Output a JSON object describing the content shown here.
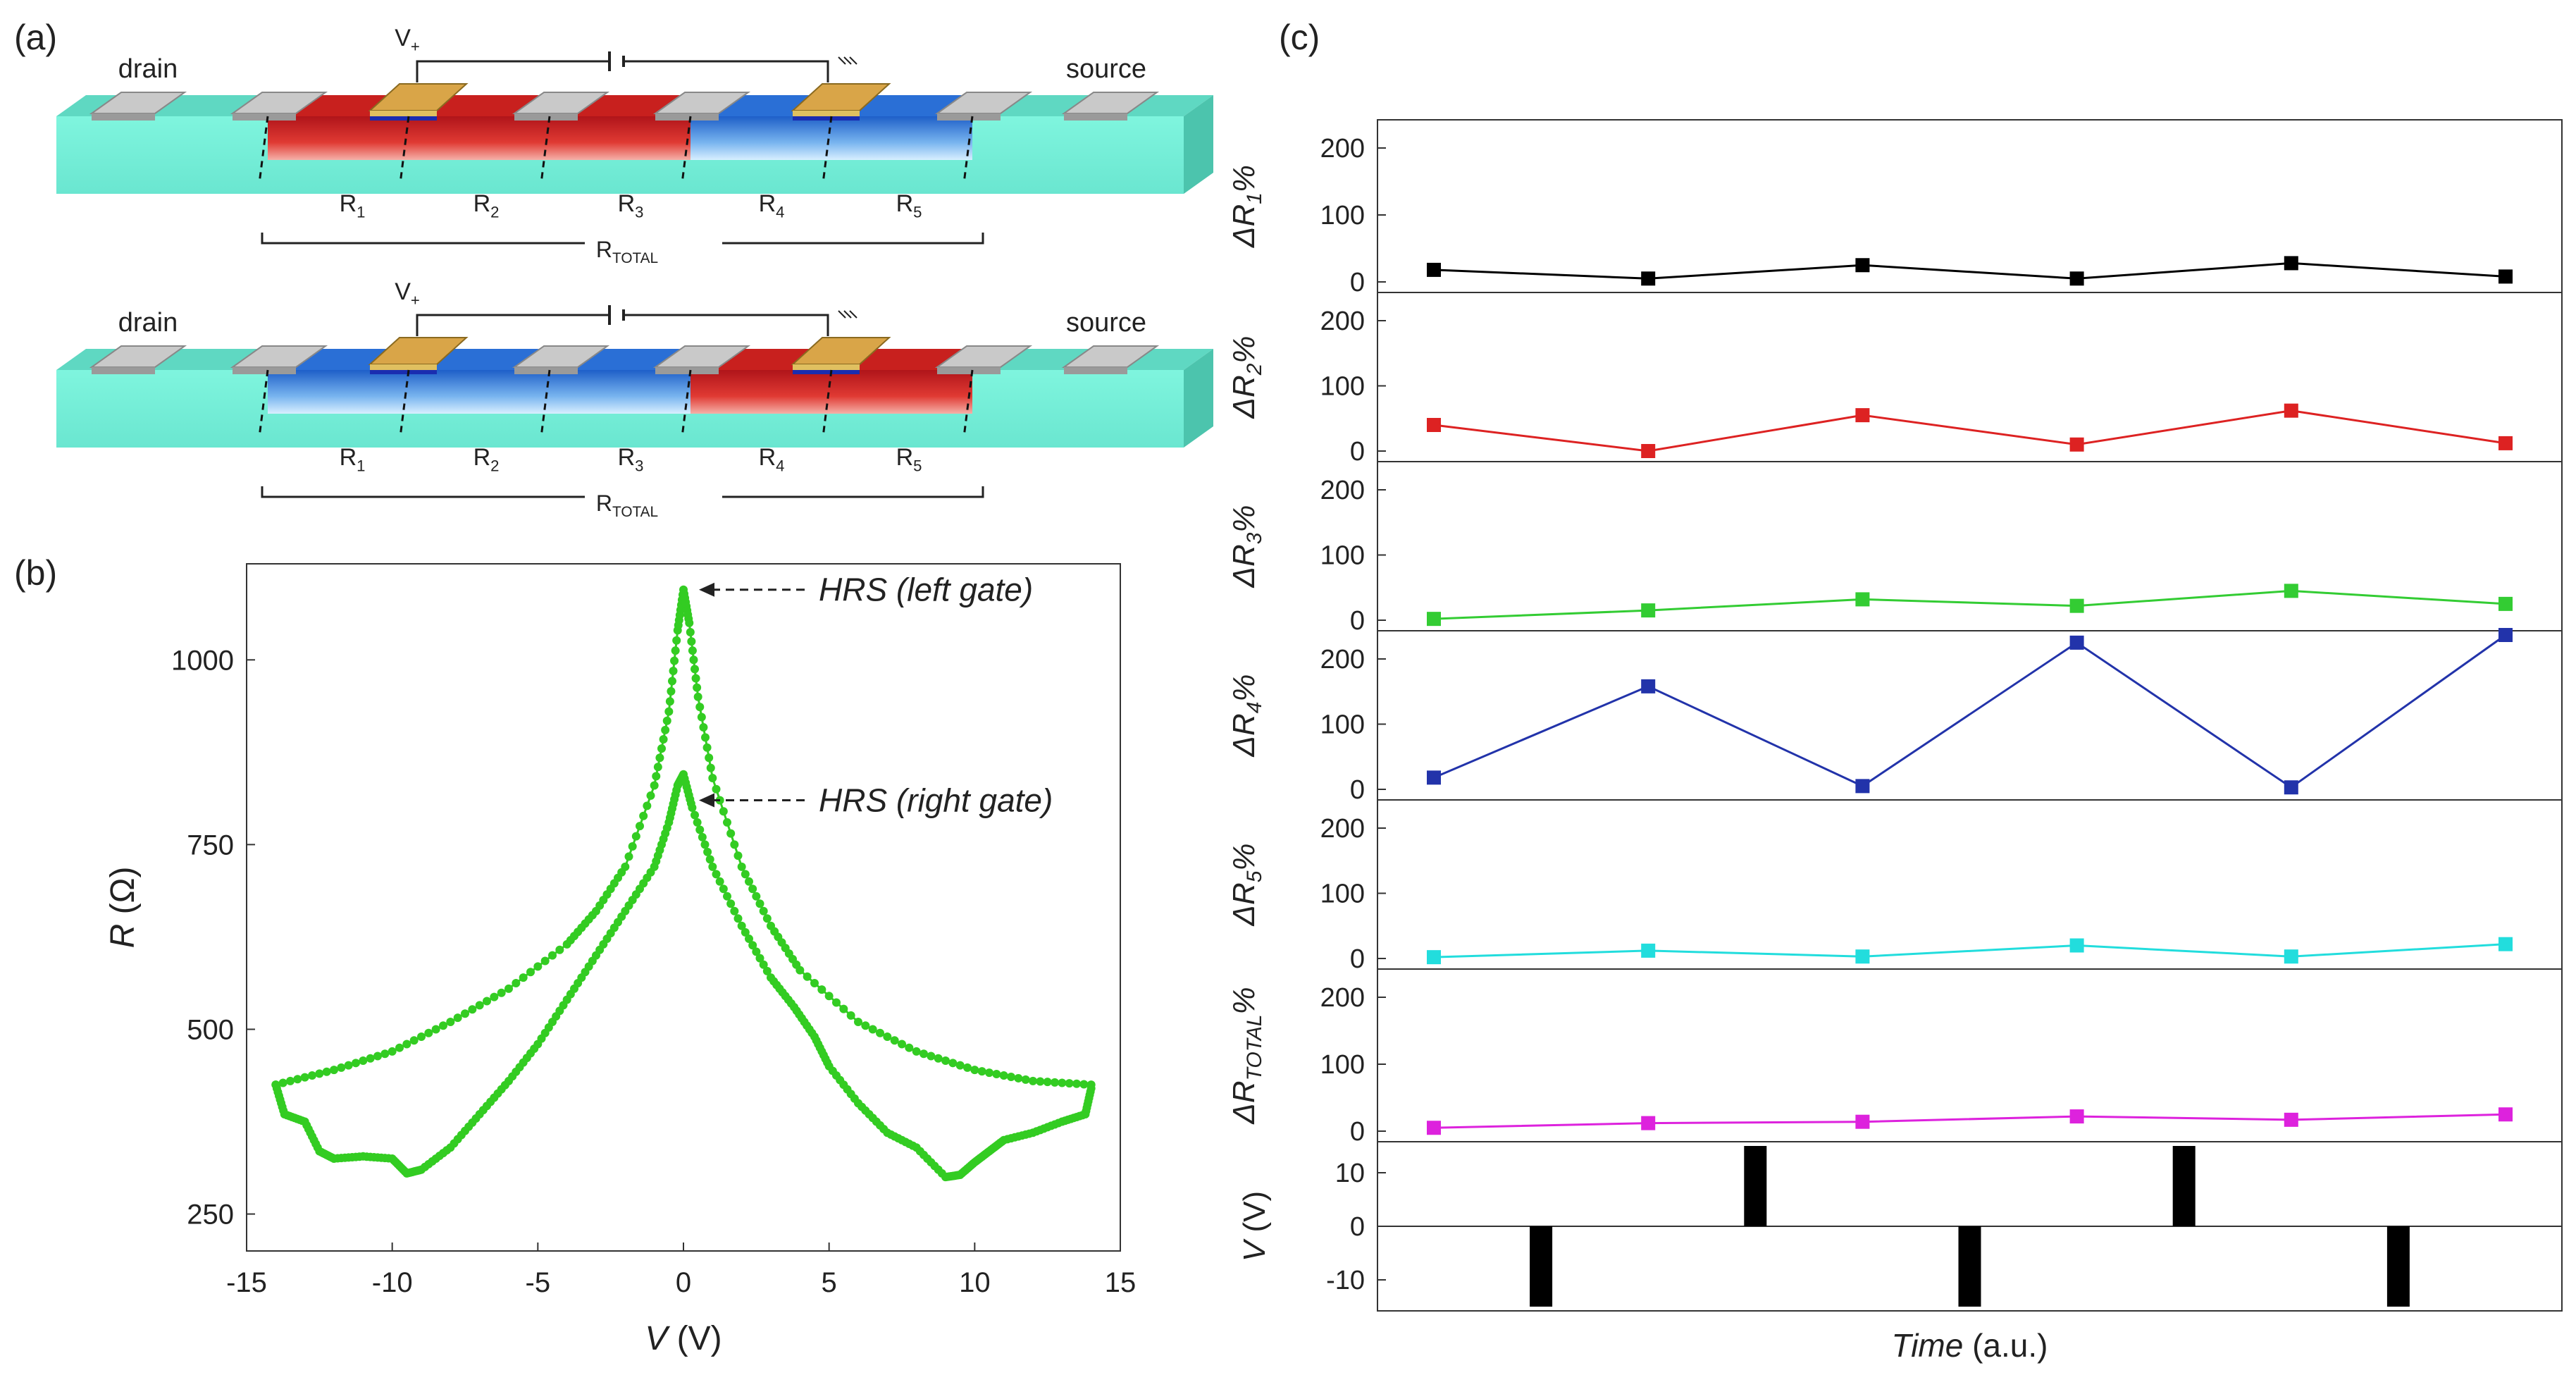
{
  "panel_a": {
    "label": "(a)",
    "top": {
      "drain_label": "drain",
      "source_label": "source",
      "vplus_label": "V+",
      "resistors": [
        "R1",
        "R2",
        "R3",
        "R4",
        "R5"
      ],
      "total_label": "RTOTAL",
      "segment_states": [
        "red",
        "red",
        "red",
        "blue",
        "blue"
      ]
    },
    "bottom": {
      "drain_label": "drain",
      "source_label": "source",
      "vplus_label": "V+",
      "resistors": [
        "R1",
        "R2",
        "R3",
        "R4",
        "R5"
      ],
      "total_label": "RTOTAL",
      "segment_states": [
        "blue",
        "blue",
        "blue",
        "red",
        "red"
      ]
    },
    "colors": {
      "substrate": "#7cf2dc",
      "substrate_dark": "#3fbfa8",
      "red": "#c8201e",
      "blue": "#2a6fd6",
      "contact": "#c9c9c9",
      "gate": "#d9a548"
    }
  },
  "panel_b": {
    "label": "(b)",
    "annotations": [
      "HRS (left gate)",
      "HRS (right gate)"
    ],
    "color": "#33cc22"
  },
  "panel_c": {
    "label": "(c)",
    "xlabel": "Time (a.u.)"
  },
  "chart_data": [
    {
      "type": "scatter",
      "title": "",
      "xlabel": "V (V)",
      "ylabel": "R (Ω)",
      "xlim": [
        -15,
        15
      ],
      "ylim": [
        200,
        1130
      ],
      "xticks": [
        -15,
        -10,
        -5,
        0,
        5,
        10,
        15
      ],
      "yticks": [
        250,
        500,
        750,
        1000
      ],
      "series": [
        {
          "name": "upper sweep (left gate HRS)",
          "x": [
            -14,
            -12,
            -10,
            -8,
            -6,
            -4,
            -3,
            -2,
            -1,
            -0.5,
            -0.2,
            0,
            0.2,
            0.5,
            1,
            2,
            3,
            4,
            6,
            8,
            10,
            12,
            14
          ],
          "y": [
            425,
            445,
            470,
            510,
            555,
            615,
            660,
            720,
            830,
            930,
            1040,
            1095,
            1050,
            950,
            840,
            720,
            640,
            580,
            510,
            470,
            445,
            430,
            425
          ]
        },
        {
          "name": "lower sweep (right gate HRS)",
          "x": [
            -14,
            -13.7,
            -13,
            -12.5,
            -12,
            -11,
            -10,
            -9.5,
            -9,
            -8,
            -7,
            -6,
            -5,
            -4,
            -3,
            -2,
            -1,
            -0.5,
            -0.2,
            0,
            0.3,
            1,
            2,
            3,
            3.8,
            4.5,
            5,
            6,
            7,
            8,
            9,
            9.5,
            10,
            10.5,
            11,
            12,
            13,
            13.8,
            14
          ],
          "y": [
            425,
            385,
            375,
            335,
            325,
            328,
            325,
            305,
            310,
            340,
            385,
            430,
            480,
            540,
            600,
            660,
            720,
            780,
            830,
            845,
            800,
            720,
            640,
            570,
            530,
            490,
            450,
            400,
            360,
            340,
            300,
            303,
            320,
            335,
            350,
            360,
            375,
            385,
            420
          ]
        }
      ],
      "annotations": [
        {
          "text": "HRS (left gate)",
          "at": [
            0,
            1095
          ]
        },
        {
          "text": "HRS (right gate)",
          "at": [
            0,
            810
          ]
        }
      ]
    },
    {
      "type": "line",
      "title": "",
      "xlabel": "Time (a.u.)",
      "x": [
        1,
        2,
        3,
        4,
        5,
        6
      ],
      "ylim": [
        0,
        240
      ],
      "yticks": [
        0,
        100,
        200
      ],
      "series": [
        {
          "name": "ΔR1%",
          "color": "#000000",
          "values": [
            18,
            5,
            25,
            5,
            28,
            8
          ]
        },
        {
          "name": "ΔR2%",
          "color": "#dd2222",
          "values": [
            40,
            0,
            55,
            10,
            62,
            12
          ]
        },
        {
          "name": "ΔR3%",
          "color": "#33cc33",
          "values": [
            2,
            15,
            32,
            22,
            45,
            25
          ]
        },
        {
          "name": "ΔR4%",
          "color": "#2233aa",
          "values": [
            18,
            158,
            5,
            225,
            3,
            240
          ]
        },
        {
          "name": "ΔR5%",
          "color": "#22dddd",
          "values": [
            2,
            12,
            3,
            20,
            3,
            22
          ]
        },
        {
          "name": "ΔRTOTAL%",
          "color": "#dd22dd",
          "values": [
            5,
            12,
            14,
            22,
            17,
            25
          ]
        }
      ]
    },
    {
      "type": "bar",
      "title": "",
      "ylabel": "V (V)",
      "ylim": [
        -15,
        15
      ],
      "yticks": [
        -10,
        0,
        10
      ],
      "pulse_times": [
        1.5,
        2.5,
        3.5,
        4.5,
        5.5,
        6.5
      ],
      "values": [
        -15,
        15,
        -15,
        15,
        -15,
        15
      ]
    }
  ]
}
